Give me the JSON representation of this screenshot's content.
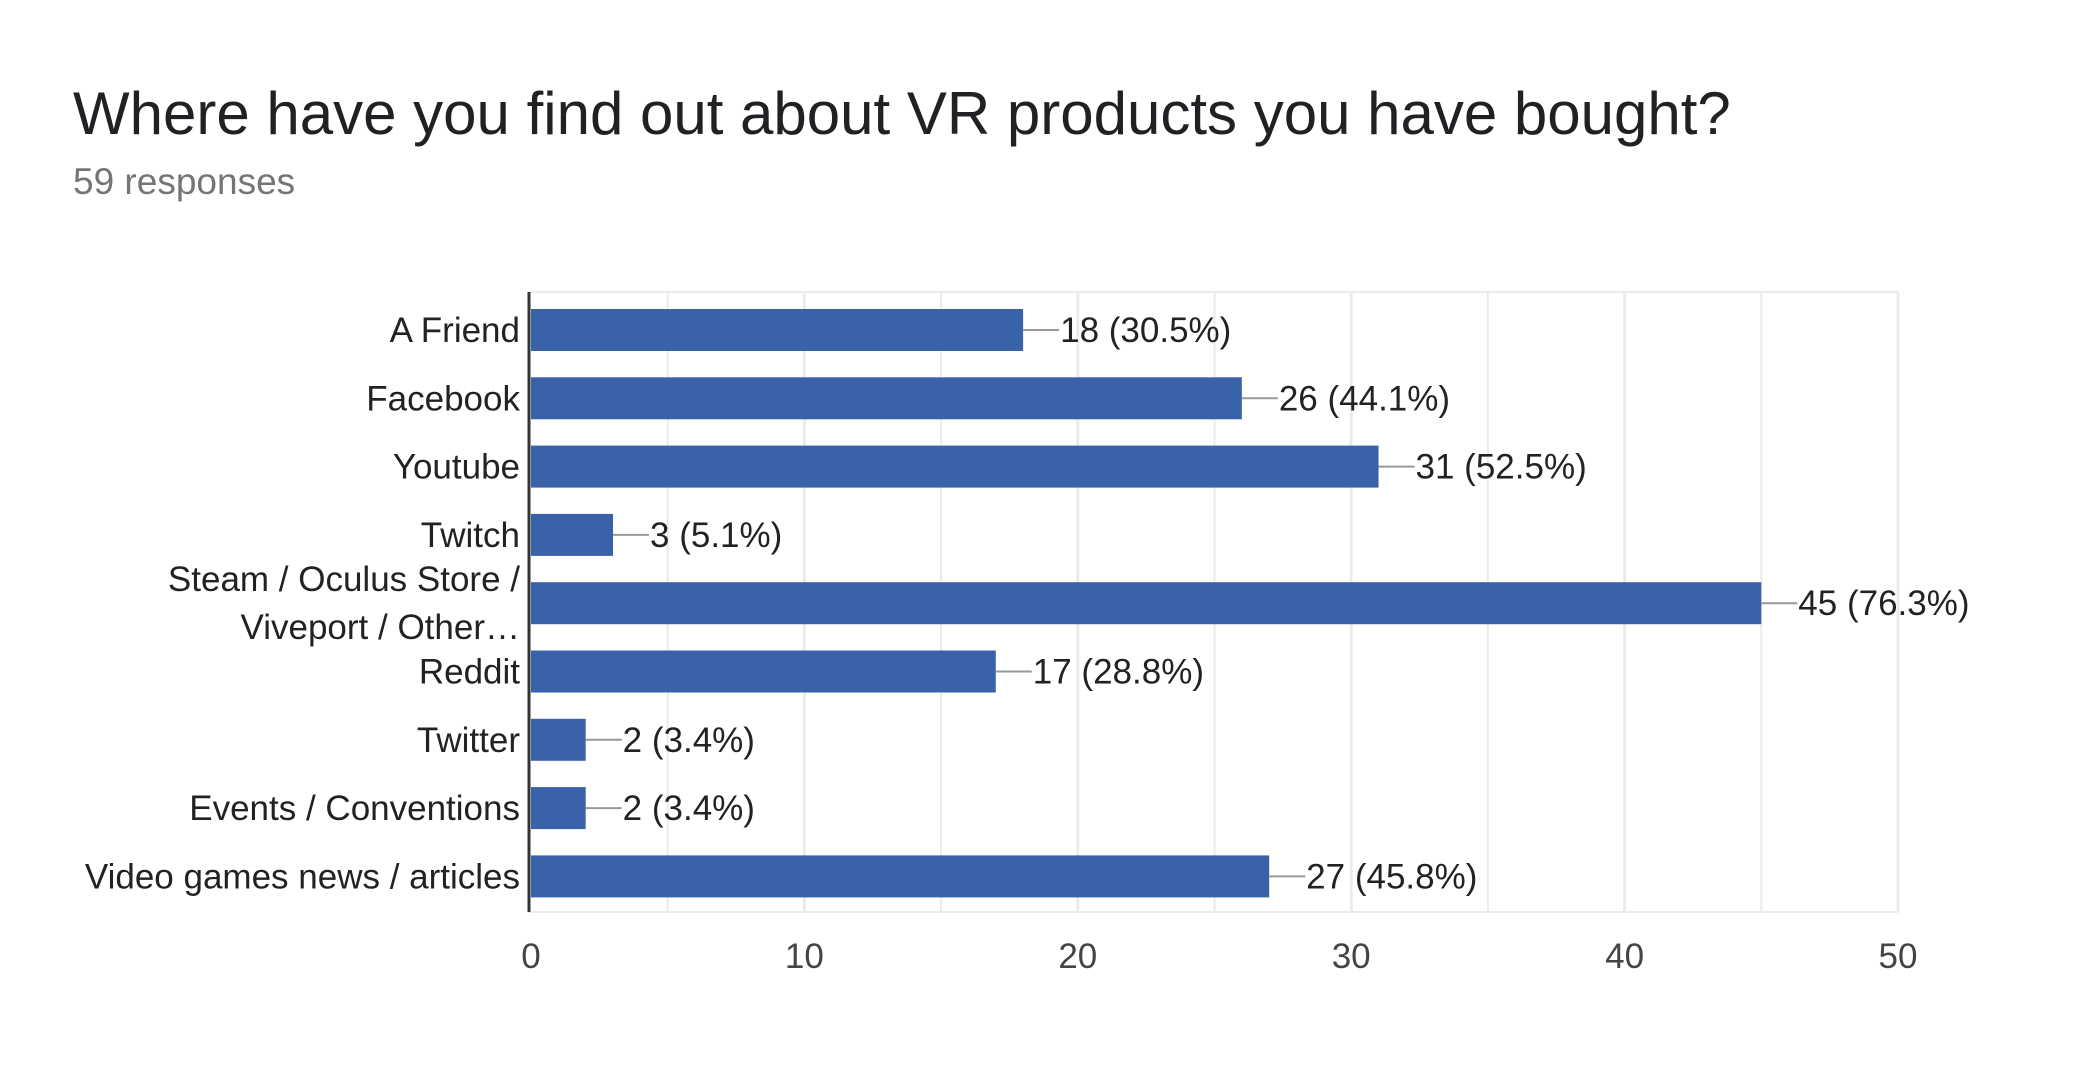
{
  "header": {
    "title": "Where have you find out about VR products you have bought?",
    "subtitle": "59 responses"
  },
  "colors": {
    "bar": "#3a62a8",
    "grid": "#ebebeb",
    "axis": "#333333",
    "leader": "#999999"
  },
  "chart_data": {
    "type": "bar",
    "orientation": "horizontal",
    "categories": [
      [
        "A Friend"
      ],
      [
        "Facebook"
      ],
      [
        "Youtube"
      ],
      [
        "Twitch"
      ],
      [
        "Steam / Oculus Store /",
        "Viveport / Other…"
      ],
      [
        "Reddit"
      ],
      [
        "Twitter"
      ],
      [
        "Events / Conventions"
      ],
      [
        "Video games news / articles"
      ]
    ],
    "values": [
      18,
      26,
      31,
      3,
      45,
      17,
      2,
      2,
      27
    ],
    "data_labels": [
      "18 (30.5%)",
      "26 (44.1%)",
      "31 (52.5%)",
      "3 (5.1%)",
      "45 (76.3%)",
      "17 (28.8%)",
      "2 (3.4%)",
      "2 (3.4%)",
      "27 (45.8%)"
    ],
    "xlim": [
      0,
      50
    ],
    "xticks": [
      0,
      10,
      20,
      30,
      40,
      50
    ],
    "grid": true
  }
}
